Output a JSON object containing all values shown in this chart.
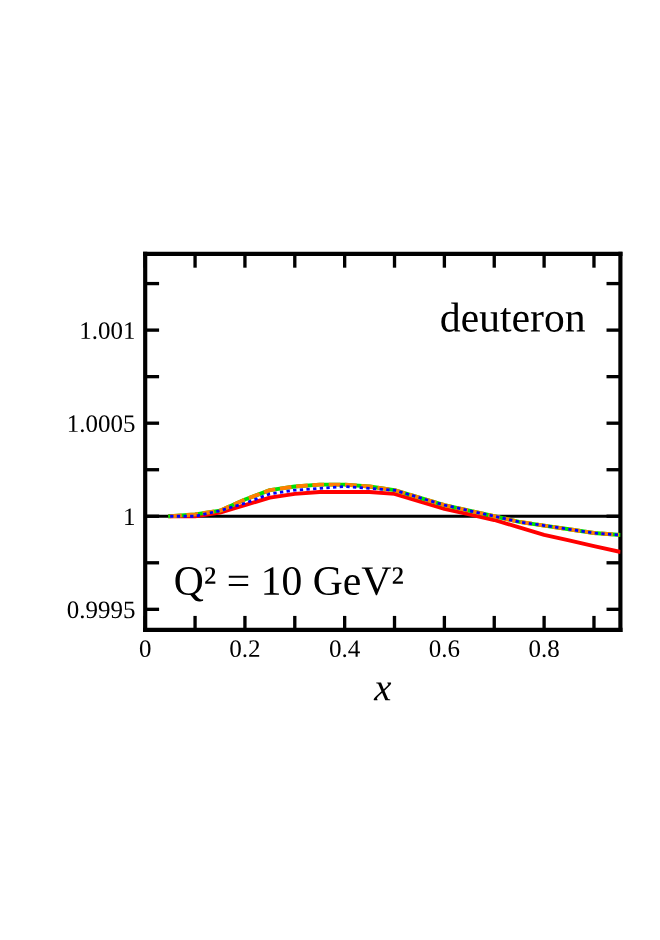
{
  "chart_data": {
    "type": "line",
    "xlabel": "x",
    "annotations": [
      "deuteron",
      "Q² = 10 GeV²"
    ],
    "x": [
      0.05,
      0.1,
      0.15,
      0.2,
      0.25,
      0.3,
      0.35,
      0.4,
      0.45,
      0.5,
      0.55,
      0.6,
      0.65,
      0.7,
      0.75,
      0.8,
      0.85,
      0.9,
      0.95
    ],
    "series": [
      {
        "color": "#ff0000",
        "line_style": "solid",
        "values": [
          1.0,
          1.0,
          1.00002,
          1.00006,
          1.0001,
          1.00012,
          1.00013,
          1.00013,
          1.00013,
          1.00012,
          1.00008,
          1.00004,
          1.00001,
          0.99998,
          0.99994,
          0.9999,
          0.99987,
          0.99984,
          0.99981
        ]
      },
      {
        "color": "#00e000",
        "line_style": "solid",
        "values": [
          1.0,
          1.00001,
          1.00003,
          1.00009,
          1.00014,
          1.00016,
          1.00017,
          1.00017,
          1.00016,
          1.00014,
          1.0001,
          1.00006,
          1.00003,
          1.0,
          0.99997,
          0.99995,
          0.99993,
          0.99991,
          0.9999
        ]
      },
      {
        "color": "#ff7f00",
        "line_style": "dashed",
        "values": [
          1.0,
          1.00001,
          1.00003,
          1.00009,
          1.00014,
          1.00016,
          1.00017,
          1.00017,
          1.00016,
          1.00014,
          1.0001,
          1.00006,
          1.00003,
          1.0,
          0.99997,
          0.99995,
          0.99993,
          0.99991,
          0.9999
        ]
      },
      {
        "color": "#0000ff",
        "line_style": "dotted",
        "values": [
          1.0,
          1.0,
          1.00003,
          1.00007,
          1.00012,
          1.00014,
          1.00015,
          1.00016,
          1.00015,
          1.00014,
          1.0001,
          1.00006,
          1.00003,
          1.0,
          0.99997,
          0.99995,
          0.99993,
          0.99991,
          0.9999
        ]
      }
    ],
    "xlim": [
      0,
      0.953
    ],
    "xticks": [
      0,
      {
        "value": 0.1,
        "label": null
      },
      0.2,
      {
        "value": 0.3,
        "label": null
      },
      0.4,
      {
        "value": 0.5,
        "label": null
      },
      0.6,
      {
        "value": 0.7,
        "label": null
      },
      0.8,
      {
        "value": 0.9,
        "label": null
      }
    ],
    "ylim": [
      0.99939,
      1.00141
    ],
    "yticks": [
      {
        "value": 1.00125,
        "label": null
      },
      1.001,
      {
        "value": 1.00075,
        "label": null
      },
      1.0005,
      {
        "value": 1.00025,
        "label": null
      },
      1,
      {
        "value": 0.99975,
        "label": null
      },
      0.9995
    ],
    "ref_lines": [
      {
        "axis": "y",
        "value": 1,
        "color": "#000000"
      }
    ]
  }
}
